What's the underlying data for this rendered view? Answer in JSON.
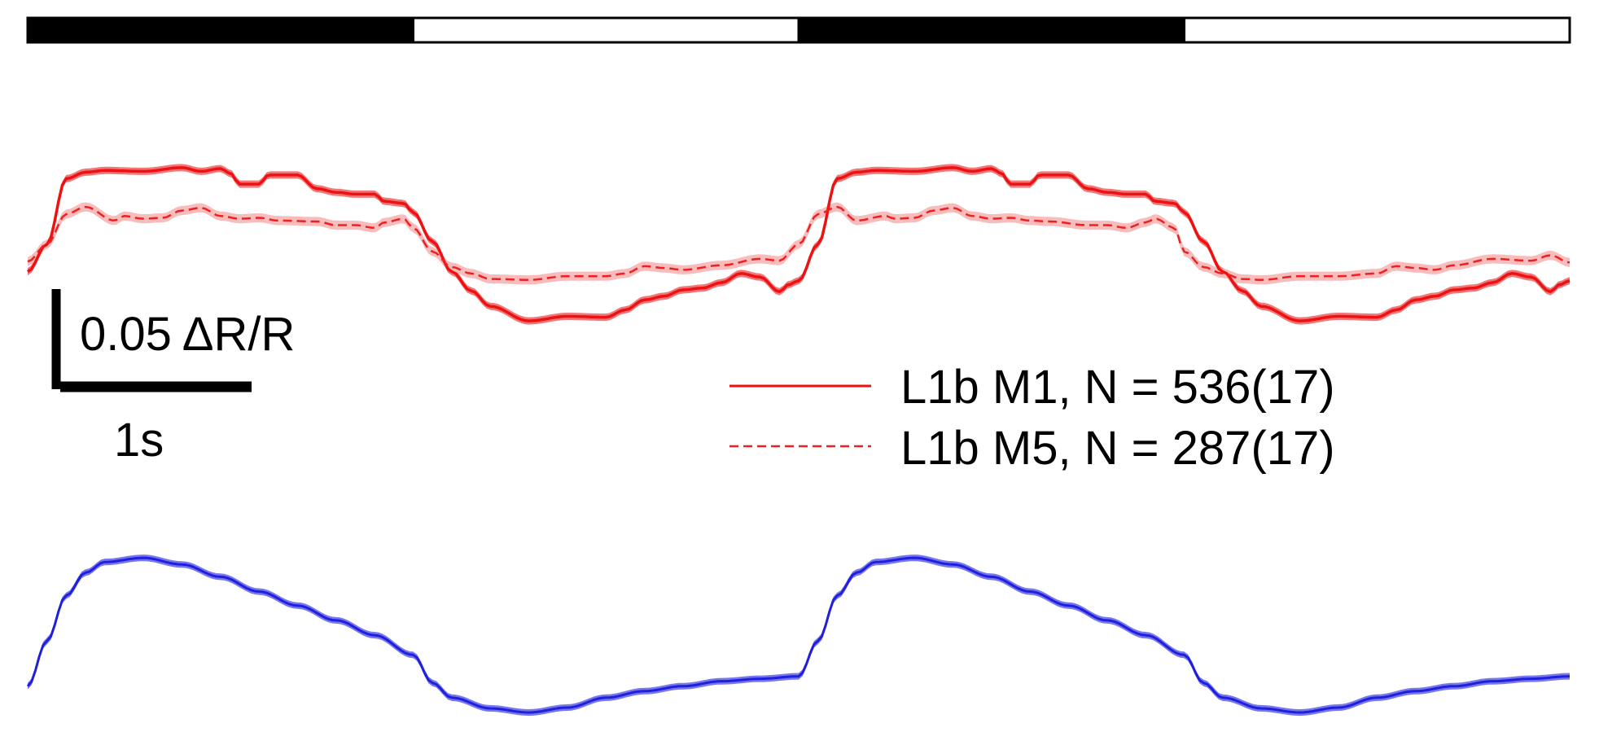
{
  "colors": {
    "m1": "#ee1111",
    "m1_band": "#f0787a",
    "m5": "#ee2020",
    "m5_band": "#f8bcbc",
    "ref": "#1f1fdd",
    "ref_band": "#7878ee",
    "stim_dark": "#000000",
    "stim_light": "#ffffff"
  },
  "chart_data": {
    "type": "line",
    "stimulus": {
      "segments": [
        {
          "state": "dark",
          "t0": 0,
          "t1": 2
        },
        {
          "state": "light",
          "t0": 2,
          "t1": 4
        },
        {
          "state": "dark",
          "t0": 4,
          "t1": 6
        },
        {
          "state": "light",
          "t0": 6,
          "t1": 8
        }
      ]
    },
    "scalebar": {
      "y_label": "0.05 ΔR/R",
      "y_value": 0.05,
      "x_label": "1s",
      "x_value": 1
    },
    "legend": {
      "placement": "center-right",
      "entries": [
        {
          "label": "L1b M1, N = 536(17)",
          "style": "solid",
          "color": "#ee1111"
        },
        {
          "label": "L1b M5, N = 287(17)",
          "style": "dashed",
          "color": "#ee2020"
        }
      ]
    },
    "panels": [
      {
        "name": "top",
        "series": [
          {
            "name": "L1b M1, N = 536(17)",
            "style": "solid",
            "sem": 0.004,
            "t": [
              0.0,
              0.1,
              0.2,
              0.3,
              0.4,
              0.6,
              0.8,
              0.9,
              1.0,
              1.05,
              1.1,
              1.2,
              1.25,
              1.4,
              1.5,
              1.6,
              1.7,
              1.8,
              1.85,
              1.95,
              2.0,
              2.1,
              2.2,
              2.3,
              2.4,
              2.6,
              2.8,
              3.0,
              3.1,
              3.2,
              3.3,
              3.4,
              3.5,
              3.6,
              3.7,
              3.8,
              3.9,
              3.95,
              4.0,
              4.1,
              4.2,
              4.3,
              4.4,
              4.6,
              4.8,
              4.9,
              5.0,
              5.05,
              5.1,
              5.2,
              5.25,
              5.4,
              5.5,
              5.6,
              5.7,
              5.8,
              5.85,
              5.95,
              6.0,
              6.1,
              6.2,
              6.3,
              6.4,
              6.6,
              6.8,
              7.0,
              7.1,
              7.2,
              7.3,
              7.4,
              7.5,
              7.6,
              7.7,
              7.8,
              7.9,
              7.95,
              8.0
            ],
            "y": [
              -0.03,
              0.0,
              0.072,
              0.079,
              0.081,
              0.08,
              0.084,
              0.08,
              0.083,
              0.078,
              0.066,
              0.066,
              0.076,
              0.076,
              0.061,
              0.057,
              0.055,
              0.055,
              0.047,
              0.045,
              0.035,
              0.003,
              -0.03,
              -0.051,
              -0.068,
              -0.084,
              -0.079,
              -0.08,
              -0.072,
              -0.061,
              -0.057,
              -0.05,
              -0.048,
              -0.042,
              -0.032,
              -0.036,
              -0.052,
              -0.044,
              -0.04,
              0.0,
              0.072,
              0.079,
              0.081,
              0.08,
              0.084,
              0.08,
              0.083,
              0.078,
              0.066,
              0.066,
              0.076,
              0.076,
              0.061,
              0.057,
              0.055,
              0.055,
              0.047,
              0.045,
              0.035,
              0.003,
              -0.03,
              -0.051,
              -0.068,
              -0.084,
              -0.079,
              -0.08,
              -0.072,
              -0.061,
              -0.057,
              -0.05,
              -0.048,
              -0.042,
              -0.032,
              -0.036,
              -0.052,
              -0.044,
              -0.04
            ]
          },
          {
            "name": "L1b M5, N = 287(17)",
            "style": "dashed",
            "sem": 0.005,
            "t": [
              0.0,
              0.1,
              0.2,
              0.3,
              0.45,
              0.5,
              0.6,
              0.7,
              0.8,
              0.9,
              1.0,
              1.1,
              1.2,
              1.3,
              1.5,
              1.6,
              1.7,
              1.8,
              1.85,
              1.95,
              2.0,
              2.1,
              2.2,
              2.3,
              2.4,
              2.6,
              2.8,
              3.0,
              3.1,
              3.2,
              3.3,
              3.4,
              3.6,
              3.8,
              3.9,
              4.0,
              4.1,
              4.2,
              4.3,
              4.45,
              4.5,
              4.6,
              4.7,
              4.8,
              4.9,
              5.0,
              5.1,
              5.2,
              5.3,
              5.5,
              5.6,
              5.7,
              5.8,
              5.85,
              5.95,
              6.0,
              6.1,
              6.2,
              6.3,
              6.4,
              6.6,
              6.8,
              7.0,
              7.1,
              7.2,
              7.3,
              7.4,
              7.6,
              7.8,
              7.9,
              8.0
            ],
            "y": [
              -0.019,
              0.0,
              0.033,
              0.041,
              0.026,
              0.031,
              0.028,
              0.029,
              0.037,
              0.04,
              0.031,
              0.028,
              0.029,
              0.026,
              0.025,
              0.021,
              0.021,
              0.018,
              0.024,
              0.028,
              0.018,
              -0.008,
              -0.025,
              -0.032,
              -0.038,
              -0.039,
              -0.035,
              -0.035,
              -0.032,
              -0.024,
              -0.026,
              -0.028,
              -0.023,
              -0.016,
              -0.018,
              0.0,
              0.033,
              0.041,
              0.026,
              0.031,
              0.028,
              0.029,
              0.037,
              0.04,
              0.031,
              0.028,
              0.029,
              0.026,
              0.025,
              0.021,
              0.021,
              0.018,
              0.024,
              0.028,
              0.018,
              -0.008,
              -0.025,
              -0.032,
              -0.038,
              -0.039,
              -0.035,
              -0.035,
              -0.032,
              -0.024,
              -0.026,
              -0.028,
              -0.023,
              -0.016,
              -0.018,
              -0.012,
              -0.02
            ]
          }
        ]
      },
      {
        "name": "bottom",
        "series": [
          {
            "name": "",
            "style": "solid",
            "sem": 0.004,
            "t": [
              0.0,
              0.1,
              0.2,
              0.3,
              0.4,
              0.6,
              0.8,
              1.0,
              1.2,
              1.4,
              1.6,
              1.8,
              2.0,
              2.1,
              2.2,
              2.4,
              2.6,
              2.8,
              3.0,
              3.2,
              3.4,
              3.6,
              3.8,
              4.0,
              4.1,
              4.2,
              4.3,
              4.4,
              4.6,
              4.8,
              5.0,
              5.2,
              5.4,
              5.6,
              5.8,
              6.0,
              6.1,
              6.2,
              6.4,
              6.6,
              6.8,
              7.0,
              7.2,
              7.4,
              7.6,
              7.8,
              8.0
            ],
            "y": [
              -0.07,
              -0.015,
              0.04,
              0.068,
              0.081,
              0.086,
              0.078,
              0.063,
              0.045,
              0.028,
              0.01,
              -0.008,
              -0.032,
              -0.066,
              -0.084,
              -0.097,
              -0.102,
              -0.096,
              -0.084,
              -0.076,
              -0.07,
              -0.064,
              -0.061,
              -0.058,
              -0.015,
              0.04,
              0.068,
              0.081,
              0.086,
              0.078,
              0.063,
              0.045,
              0.028,
              0.01,
              -0.008,
              -0.032,
              -0.066,
              -0.084,
              -0.097,
              -0.102,
              -0.096,
              -0.084,
              -0.076,
              -0.07,
              -0.064,
              -0.061,
              -0.058
            ]
          }
        ]
      }
    ]
  }
}
